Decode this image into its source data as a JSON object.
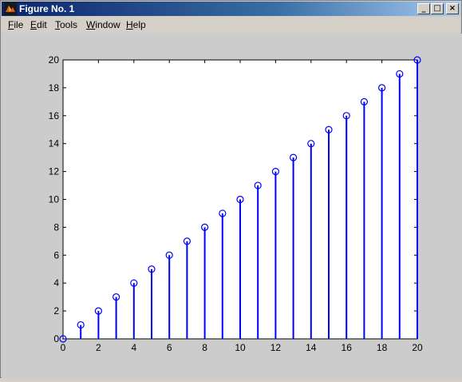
{
  "window": {
    "title": "Figure No. 1",
    "controls": {
      "minimize": "_",
      "maximize": "□",
      "close": "×"
    }
  },
  "menu": {
    "items": [
      {
        "key": "F",
        "rest": "ile"
      },
      {
        "key": "E",
        "rest": "dit"
      },
      {
        "key": "T",
        "rest": "ools"
      },
      {
        "key": "W",
        "rest": "indow"
      },
      {
        "key": "H",
        "rest": "elp"
      }
    ]
  },
  "chart_data": {
    "type": "stem",
    "x": [
      0,
      1,
      2,
      3,
      4,
      5,
      6,
      7,
      8,
      9,
      10,
      11,
      12,
      13,
      14,
      15,
      16,
      17,
      18,
      19,
      20
    ],
    "y": [
      0,
      1,
      2,
      3,
      4,
      5,
      6,
      7,
      8,
      9,
      10,
      11,
      12,
      13,
      14,
      15,
      16,
      17,
      18,
      19,
      20
    ],
    "xlim": [
      0,
      20
    ],
    "ylim": [
      0,
      20
    ],
    "xticks": [
      0,
      2,
      4,
      6,
      8,
      10,
      12,
      14,
      16,
      18,
      20
    ],
    "yticks": [
      0,
      2,
      4,
      6,
      8,
      10,
      12,
      14,
      16,
      18,
      20
    ],
    "marker": "circle",
    "color": "#0000ff",
    "grid": false,
    "title": "",
    "xlabel": "",
    "ylabel": ""
  }
}
